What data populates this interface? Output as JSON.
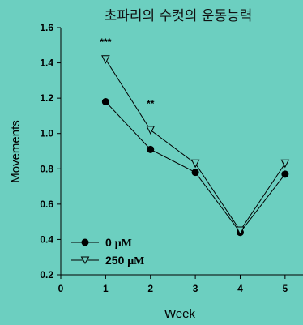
{
  "chart_data": {
    "type": "line",
    "title": "초파리의 수컷의 운동능력",
    "xlabel": "Week",
    "ylabel": "Movements",
    "xlim": [
      0,
      5.4
    ],
    "ylim": [
      0.2,
      1.6
    ],
    "x_ticks": [
      "0",
      "1",
      "2",
      "3",
      "4",
      "5"
    ],
    "y_ticks": [
      "0.2",
      "0.4",
      "0.6",
      "0.8",
      "1.0",
      "1.2",
      "1.4",
      "1.6"
    ],
    "grid": false,
    "legend_position": "bottom-left",
    "x": [
      1,
      2,
      3,
      4,
      5
    ],
    "series": [
      {
        "name": "0 μM",
        "marker": "filled-circle",
        "values": [
          1.18,
          0.91,
          0.78,
          0.44,
          0.77
        ]
      },
      {
        "name": "250 μM",
        "marker": "open-triangle-down",
        "values": [
          1.42,
          1.02,
          0.83,
          0.45,
          0.83
        ]
      }
    ],
    "annotations": [
      {
        "text": "***",
        "x": 1,
        "y": 1.5
      },
      {
        "text": "**",
        "x": 2,
        "y": 1.15
      }
    ]
  },
  "legend": {
    "series0_value": "0",
    "series0_unit": "μM",
    "series1_value": "250",
    "series1_unit": "μM"
  },
  "colors": {
    "background": "#6ccfc0",
    "line": "#000000"
  }
}
